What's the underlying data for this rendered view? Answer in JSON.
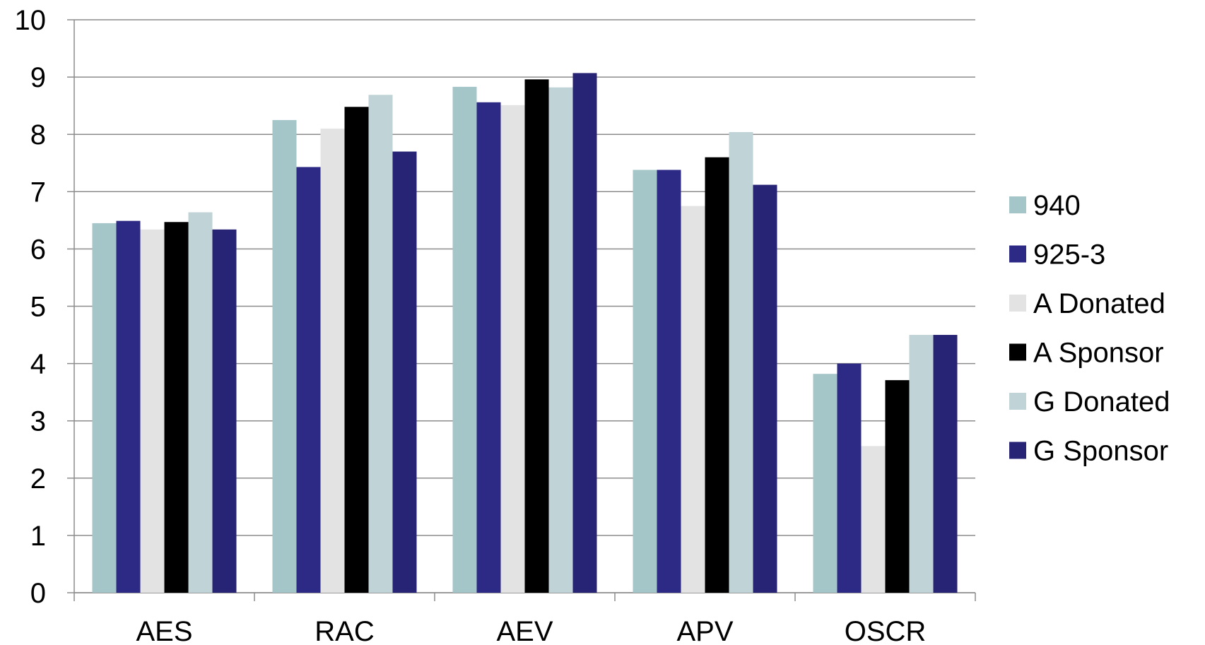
{
  "chart_data": {
    "type": "bar",
    "title": "",
    "xlabel": "",
    "ylabel": "",
    "ylim": [
      0,
      10
    ],
    "yticks": [
      "0",
      "1",
      "2",
      "3",
      "4",
      "5",
      "6",
      "7",
      "8",
      "9",
      "10"
    ],
    "grid": true,
    "legend_position": "right",
    "categories": [
      "AES",
      "RAC",
      "AEV",
      "APV",
      "OSCR"
    ],
    "series": [
      {
        "name": "940",
        "color": "#a5c6c8",
        "values": [
          6.45,
          8.25,
          8.83,
          7.38,
          3.82
        ]
      },
      {
        "name": "925-3",
        "color": "#2d2a85",
        "values": [
          6.49,
          7.43,
          8.56,
          7.38,
          4.0
        ]
      },
      {
        "name": "A Donated",
        "color": "#e3e3e3",
        "values": [
          6.34,
          8.1,
          8.51,
          6.75,
          2.56
        ]
      },
      {
        "name": "A Sponsor",
        "color": "#000000",
        "values": [
          6.47,
          8.48,
          8.96,
          7.6,
          3.71
        ]
      },
      {
        "name": "G Donated",
        "color": "#c0d3d6",
        "values": [
          6.64,
          8.69,
          8.82,
          8.04,
          4.5
        ]
      },
      {
        "name": "G Sponsor",
        "color": "#282475",
        "values": [
          6.34,
          7.7,
          9.07,
          7.12,
          4.5
        ]
      }
    ]
  }
}
